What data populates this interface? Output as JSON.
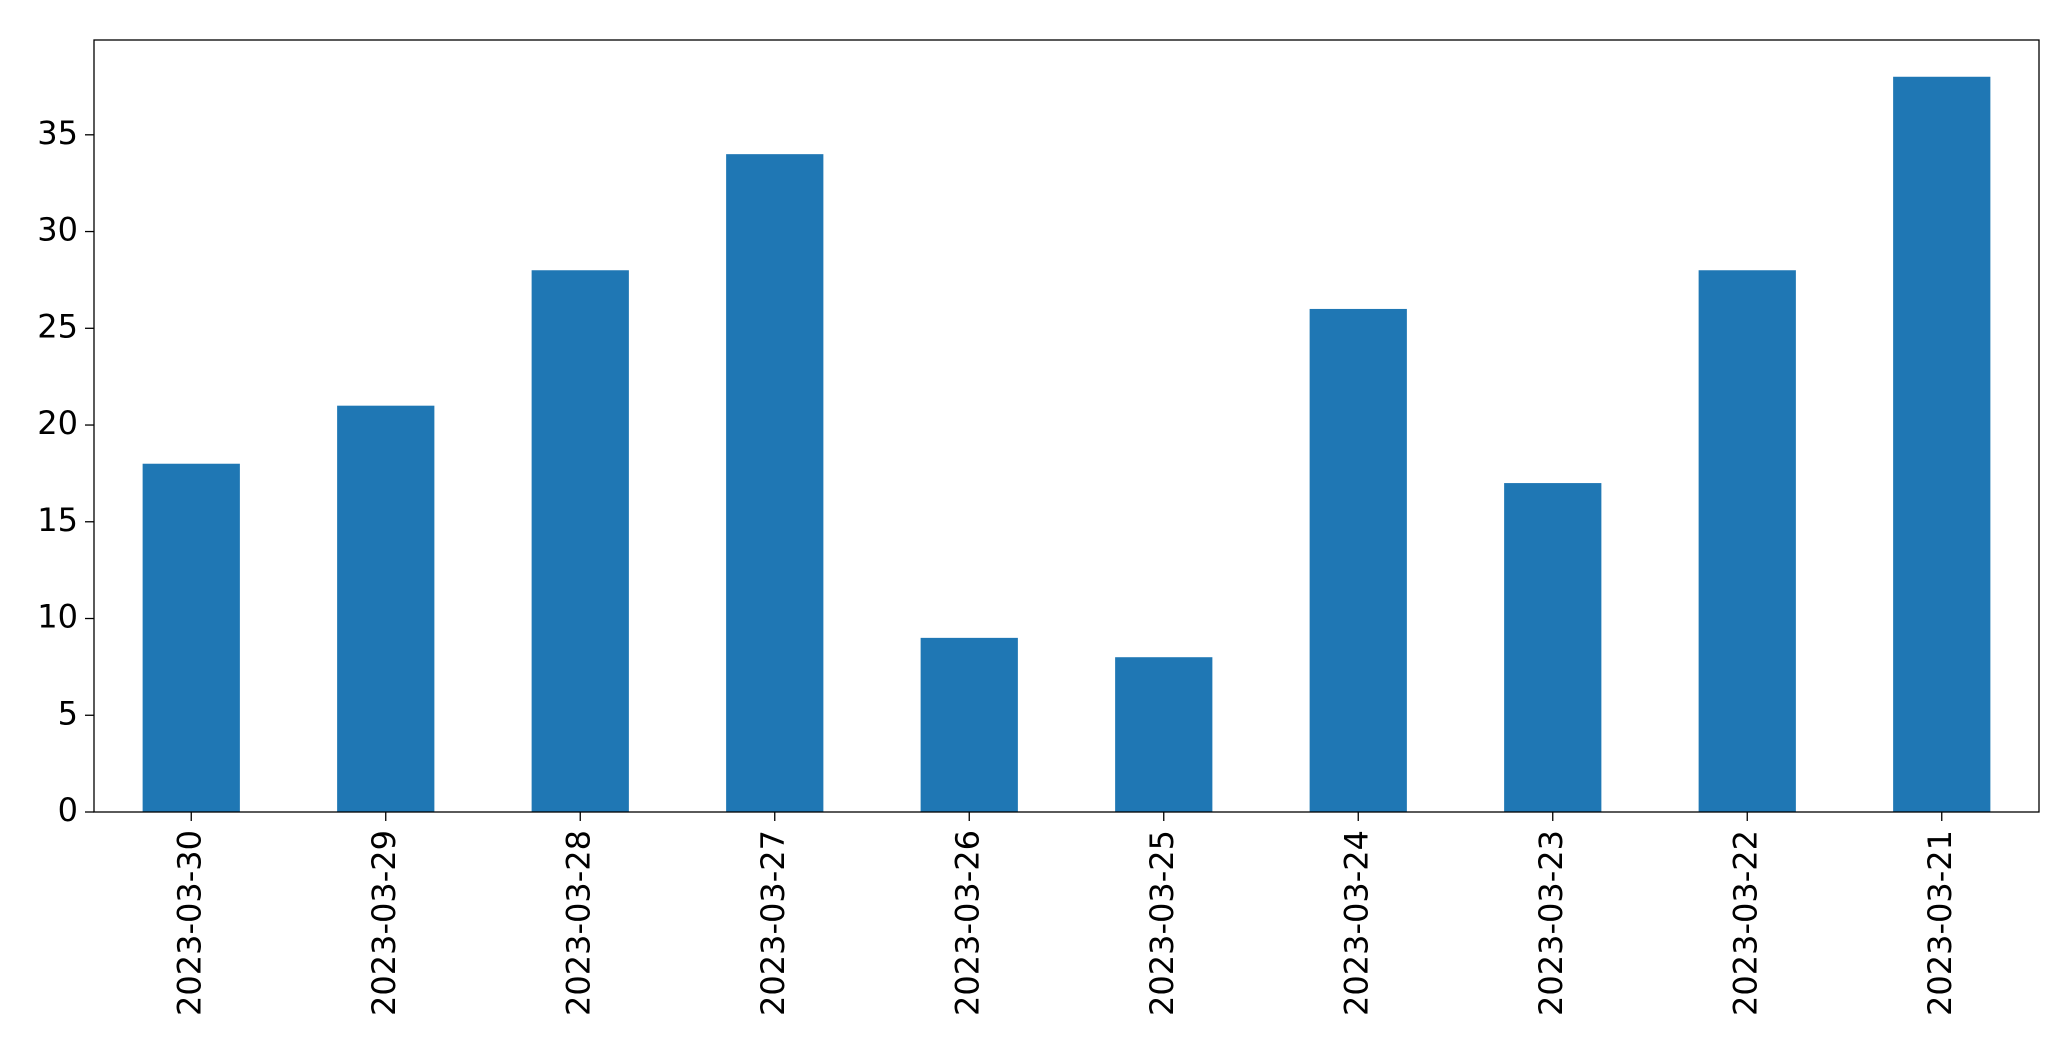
{
  "chart_data": {
    "type": "bar",
    "categories": [
      "2023-03-30",
      "2023-03-29",
      "2023-03-28",
      "2023-03-27",
      "2023-03-26",
      "2023-03-25",
      "2023-03-24",
      "2023-03-23",
      "2023-03-22",
      "2023-03-21"
    ],
    "values": [
      18,
      21,
      28,
      34,
      9,
      8,
      26,
      17,
      28,
      38
    ],
    "color": "#1f77b4",
    "ylim": [
      0,
      39.9
    ],
    "yticks": [
      0,
      5,
      10,
      15,
      20,
      25,
      30,
      35
    ],
    "grid": false
  }
}
